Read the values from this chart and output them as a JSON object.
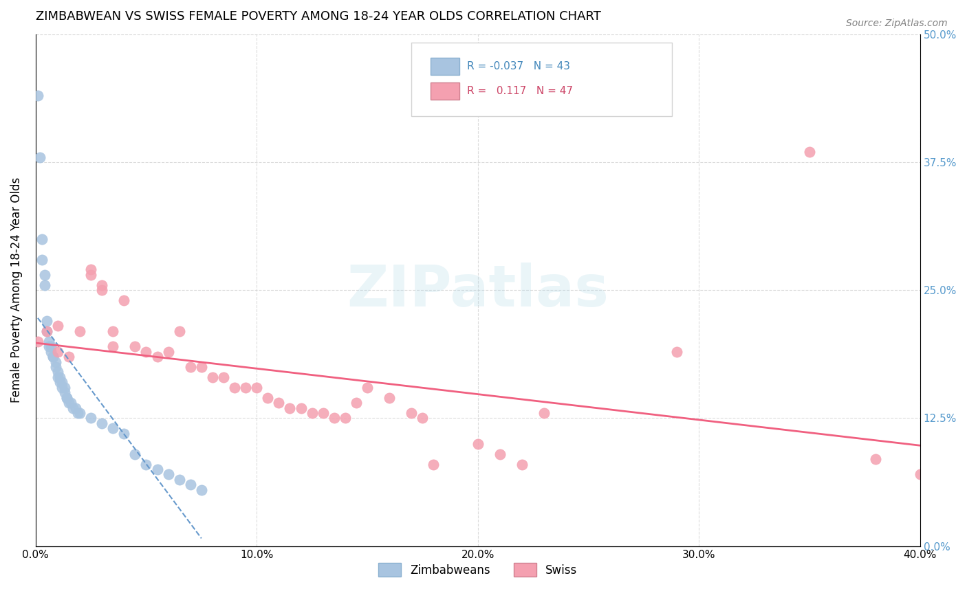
{
  "title": "ZIMBABWEAN VS SWISS FEMALE POVERTY AMONG 18-24 YEAR OLDS CORRELATION CHART",
  "source": "Source: ZipAtlas.com",
  "ylabel": "Female Poverty Among 18-24 Year Olds",
  "xlabel": "",
  "xlim": [
    0.0,
    0.4
  ],
  "ylim": [
    0.0,
    0.5
  ],
  "xticks": [
    0.0,
    0.1,
    0.2,
    0.3,
    0.4
  ],
  "yticks": [
    0.0,
    0.125,
    0.25,
    0.375,
    0.5
  ],
  "xtick_labels": [
    "0.0%",
    "10.0%",
    "20.0%",
    "30.0%",
    "40.0%"
  ],
  "ytick_labels_right": [
    "0.0%",
    "12.5%",
    "25.0%",
    "37.5%",
    "50.0%"
  ],
  "legend_r1": "R = -0.037",
  "legend_n1": "N = 43",
  "legend_r2": "R =  0.117",
  "legend_n2": "N = 47",
  "zim_color": "#a8c4e0",
  "swiss_color": "#f4a0b0",
  "zim_line_color": "#6699cc",
  "swiss_line_color": "#f06080",
  "watermark": "ZIPatlas",
  "background_color": "#ffffff",
  "grid_color": "#cccccc",
  "zimbabwean_x": [
    0.001,
    0.002,
    0.003,
    0.003,
    0.004,
    0.004,
    0.005,
    0.005,
    0.006,
    0.006,
    0.007,
    0.007,
    0.008,
    0.008,
    0.009,
    0.009,
    0.01,
    0.01,
    0.011,
    0.011,
    0.012,
    0.012,
    0.013,
    0.013,
    0.014,
    0.014,
    0.015,
    0.016,
    0.017,
    0.018,
    0.019,
    0.02,
    0.025,
    0.03,
    0.035,
    0.04,
    0.045,
    0.05,
    0.055,
    0.06,
    0.065,
    0.07,
    0.075
  ],
  "zimbabwean_y": [
    0.44,
    0.38,
    0.3,
    0.28,
    0.265,
    0.255,
    0.22,
    0.21,
    0.2,
    0.195,
    0.195,
    0.19,
    0.185,
    0.185,
    0.18,
    0.175,
    0.17,
    0.165,
    0.165,
    0.16,
    0.16,
    0.155,
    0.155,
    0.15,
    0.145,
    0.145,
    0.14,
    0.14,
    0.135,
    0.135,
    0.13,
    0.13,
    0.125,
    0.12,
    0.115,
    0.11,
    0.09,
    0.08,
    0.075,
    0.07,
    0.065,
    0.06,
    0.055
  ],
  "swiss_x": [
    0.001,
    0.005,
    0.01,
    0.01,
    0.015,
    0.02,
    0.025,
    0.025,
    0.03,
    0.03,
    0.035,
    0.035,
    0.04,
    0.045,
    0.05,
    0.055,
    0.06,
    0.065,
    0.07,
    0.075,
    0.08,
    0.085,
    0.09,
    0.095,
    0.1,
    0.105,
    0.11,
    0.115,
    0.12,
    0.125,
    0.13,
    0.135,
    0.14,
    0.145,
    0.15,
    0.16,
    0.17,
    0.175,
    0.18,
    0.2,
    0.21,
    0.22,
    0.23,
    0.29,
    0.35,
    0.38,
    0.4
  ],
  "swiss_y": [
    0.2,
    0.21,
    0.19,
    0.215,
    0.185,
    0.21,
    0.27,
    0.265,
    0.25,
    0.255,
    0.195,
    0.21,
    0.24,
    0.195,
    0.19,
    0.185,
    0.19,
    0.21,
    0.175,
    0.175,
    0.165,
    0.165,
    0.155,
    0.155,
    0.155,
    0.145,
    0.14,
    0.135,
    0.135,
    0.13,
    0.13,
    0.125,
    0.125,
    0.14,
    0.155,
    0.145,
    0.13,
    0.125,
    0.08,
    0.1,
    0.09,
    0.08,
    0.13,
    0.19,
    0.385,
    0.085,
    0.07
  ]
}
